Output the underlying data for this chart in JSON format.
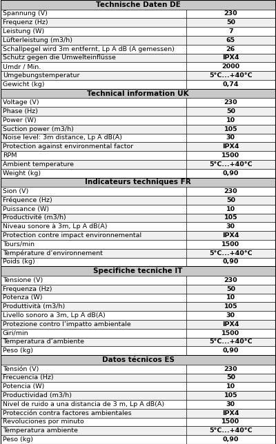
{
  "sections": [
    {
      "header": "Technische Daten DE",
      "rows": [
        [
          "Spannung (V)",
          "230"
        ],
        [
          "Frequenz (Hz)",
          "50"
        ],
        [
          "Leistung (W)",
          "7"
        ],
        [
          "Lüfterleistung (m3/h)",
          "65"
        ],
        [
          "Schallpegel wird 3m entfernt, Lp A dB (A gemessen)",
          "26"
        ],
        [
          "Schutz gegen die Umwelteinflüsse",
          "IPX4"
        ],
        [
          "Umdr / Min.",
          "2000"
        ],
        [
          "Umgebungstemperatur",
          "5°C...+40°C"
        ],
        [
          "Gewicht (kg)",
          "0,74"
        ]
      ]
    },
    {
      "header": "Technical information UK",
      "rows": [
        [
          "Voltage (V)",
          "230"
        ],
        [
          "Phase (Hz)",
          "50"
        ],
        [
          "Power (W)",
          "10"
        ],
        [
          "Suction power (m3/h)",
          "105"
        ],
        [
          "Noise level: 3m distance, Lp A dB(A)",
          "30"
        ],
        [
          "Protection against environmental factor",
          "IPX4"
        ],
        [
          "RPM",
          "1500"
        ],
        [
          "Ambient temperature",
          "5°C...+40°C"
        ],
        [
          "Weight (kg)",
          "0,90"
        ]
      ]
    },
    {
      "header": "Indicateurs techniques FR",
      "rows": [
        [
          "Sion (V)",
          "230"
        ],
        [
          "Fréquence (Hz)",
          "50"
        ],
        [
          "Puissance (W)",
          "10"
        ],
        [
          "Productivité (m3/h)",
          "105"
        ],
        [
          "Niveau sonore à 3m, Lp A dB(A)",
          "30"
        ],
        [
          "Protection contre impact environnemental",
          "IPX4"
        ],
        [
          "Tours/min",
          "1500"
        ],
        [
          "Température d’environnement",
          "5°C...+40°C"
        ],
        [
          "Poids (kg)",
          "0,90"
        ]
      ]
    },
    {
      "header": "Specifiche tecniche IT",
      "rows": [
        [
          "Tensione (V)",
          "230"
        ],
        [
          "Frequenza (Hz)",
          "50"
        ],
        [
          "Potenza (W)",
          "10"
        ],
        [
          "Produttività (m3/h)",
          "105"
        ],
        [
          "Livello sonoro a 3m, Lp A dB(A)",
          "30"
        ],
        [
          "Protezione contro l’impatto ambientale",
          "IPX4"
        ],
        [
          "Giri/min",
          "1500"
        ],
        [
          "Temperatura d’ambiente",
          "5°C...+40°C"
        ],
        [
          "Peso (kg)",
          "0,90"
        ]
      ]
    },
    {
      "header": "Datos técnicos ES",
      "rows": [
        [
          "Tensión (V)",
          "230"
        ],
        [
          "Frecuencia (Hz)",
          "50"
        ],
        [
          "Potencia (W)",
          "10"
        ],
        [
          "Productividad (m3/h)",
          "105"
        ],
        [
          "Nivel de ruido a una distancia de 3 m, Lp A dB(A)",
          "30"
        ],
        [
          "Protección contra factores ambientales",
          "IPX4"
        ],
        [
          "Revoluciones por minuto",
          "1500"
        ],
        [
          "Temperatura ambiente",
          "5°C...+40°C"
        ],
        [
          "Peso (kg)",
          "0,90"
        ]
      ]
    }
  ],
  "header_bg": "#c8c8c8",
  "header_font_size": 7.5,
  "row_font_size": 6.8,
  "col_split": 0.675,
  "bg_color": "#ffffff",
  "border_color": "#000000",
  "bold_values": true
}
